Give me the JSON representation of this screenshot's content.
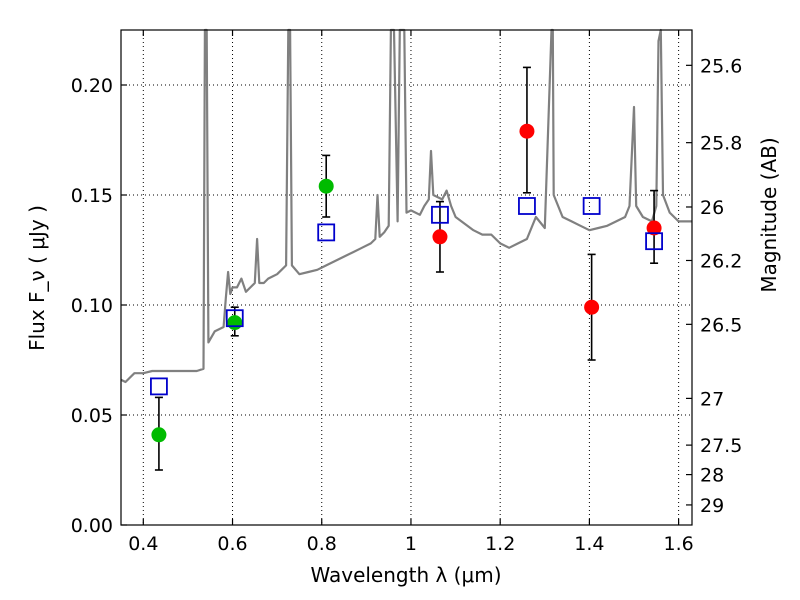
{
  "chart_data": {
    "type": "scatter",
    "xlabel": "Wavelength  λ (μm)",
    "ylabel": "Flux  F_ν  ( μJy )",
    "y2label": "Magnitude (AB)",
    "xlim": [
      0.35,
      1.63
    ],
    "ylim": [
      0,
      0.225
    ],
    "grid": true,
    "x_ticks": [
      {
        "value": 0.4,
        "label": "0.4"
      },
      {
        "value": 0.6,
        "label": "0.6"
      },
      {
        "value": 0.8,
        "label": "0.8"
      },
      {
        "value": 1.0,
        "label": "1"
      },
      {
        "value": 1.2,
        "label": "1.2"
      },
      {
        "value": 1.4,
        "label": "1.4"
      },
      {
        "value": 1.6,
        "label": "1.6"
      }
    ],
    "y_ticks": [
      {
        "value": 0.0,
        "label": "0.00"
      },
      {
        "value": 0.05,
        "label": "0.05"
      },
      {
        "value": 0.1,
        "label": "0.10"
      },
      {
        "value": 0.15,
        "label": "0.15"
      },
      {
        "value": 0.2,
        "label": "0.20"
      }
    ],
    "y2_ticks": [
      {
        "value": 25.6,
        "label": "25.6"
      },
      {
        "value": 25.8,
        "label": "25.8"
      },
      {
        "value": 26.0,
        "label": "26"
      },
      {
        "value": 26.2,
        "label": "26.2"
      },
      {
        "value": 26.5,
        "label": "26.5"
      },
      {
        "value": 27.0,
        "label": "27"
      },
      {
        "value": 27.5,
        "label": "27.5"
      },
      {
        "value": 28.0,
        "label": "28"
      },
      {
        "value": 29.0,
        "label": "29"
      }
    ],
    "series": [
      {
        "marker": "line",
        "color": "#808080",
        "points": [
          [
            0.35,
            0.066
          ],
          [
            0.36,
            0.065
          ],
          [
            0.37,
            0.067
          ],
          [
            0.38,
            0.069
          ],
          [
            0.4,
            0.069
          ],
          [
            0.42,
            0.07
          ],
          [
            0.45,
            0.07
          ],
          [
            0.48,
            0.07
          ],
          [
            0.5,
            0.07
          ],
          [
            0.52,
            0.07
          ],
          [
            0.535,
            0.071
          ],
          [
            0.538,
            0.225
          ],
          [
            0.542,
            0.225
          ],
          [
            0.546,
            0.083
          ],
          [
            0.56,
            0.088
          ],
          [
            0.58,
            0.09
          ],
          [
            0.585,
            0.103
          ],
          [
            0.59,
            0.115
          ],
          [
            0.595,
            0.105
          ],
          [
            0.6,
            0.108
          ],
          [
            0.61,
            0.108
          ],
          [
            0.62,
            0.112
          ],
          [
            0.63,
            0.106
          ],
          [
            0.64,
            0.108
          ],
          [
            0.65,
            0.11
          ],
          [
            0.655,
            0.13
          ],
          [
            0.66,
            0.11
          ],
          [
            0.67,
            0.11
          ],
          [
            0.68,
            0.112
          ],
          [
            0.69,
            0.113
          ],
          [
            0.7,
            0.114
          ],
          [
            0.71,
            0.116
          ],
          [
            0.72,
            0.118
          ],
          [
            0.725,
            0.225
          ],
          [
            0.729,
            0.225
          ],
          [
            0.733,
            0.118
          ],
          [
            0.75,
            0.114
          ],
          [
            0.77,
            0.115
          ],
          [
            0.79,
            0.116
          ],
          [
            0.81,
            0.118
          ],
          [
            0.83,
            0.12
          ],
          [
            0.85,
            0.122
          ],
          [
            0.87,
            0.124
          ],
          [
            0.89,
            0.126
          ],
          [
            0.91,
            0.128
          ],
          [
            0.92,
            0.13
          ],
          [
            0.925,
            0.15
          ],
          [
            0.93,
            0.131
          ],
          [
            0.94,
            0.133
          ],
          [
            0.95,
            0.136
          ],
          [
            0.955,
            0.225
          ],
          [
            0.962,
            0.225
          ],
          [
            0.97,
            0.138
          ],
          [
            0.975,
            0.225
          ],
          [
            0.985,
            0.225
          ],
          [
            0.99,
            0.142
          ],
          [
            1.0,
            0.143
          ],
          [
            1.02,
            0.141
          ],
          [
            1.03,
            0.145
          ],
          [
            1.04,
            0.148
          ],
          [
            1.045,
            0.17
          ],
          [
            1.05,
            0.15
          ],
          [
            1.07,
            0.148
          ],
          [
            1.08,
            0.152
          ],
          [
            1.09,
            0.145
          ],
          [
            1.1,
            0.14
          ],
          [
            1.12,
            0.137
          ],
          [
            1.14,
            0.134
          ],
          [
            1.16,
            0.132
          ],
          [
            1.18,
            0.132
          ],
          [
            1.2,
            0.128
          ],
          [
            1.22,
            0.126
          ],
          [
            1.24,
            0.128
          ],
          [
            1.26,
            0.13
          ],
          [
            1.28,
            0.14
          ],
          [
            1.3,
            0.135
          ],
          [
            1.315,
            0.225
          ],
          [
            1.318,
            0.225
          ],
          [
            1.32,
            0.15
          ],
          [
            1.34,
            0.14
          ],
          [
            1.36,
            0.138
          ],
          [
            1.38,
            0.136
          ],
          [
            1.4,
            0.134
          ],
          [
            1.42,
            0.135
          ],
          [
            1.44,
            0.136
          ],
          [
            1.46,
            0.138
          ],
          [
            1.48,
            0.14
          ],
          [
            1.49,
            0.145
          ],
          [
            1.5,
            0.19
          ],
          [
            1.505,
            0.145
          ],
          [
            1.52,
            0.14
          ],
          [
            1.54,
            0.138
          ],
          [
            1.55,
            0.145
          ],
          [
            1.555,
            0.22
          ],
          [
            1.56,
            0.225
          ],
          [
            1.565,
            0.15
          ],
          [
            1.58,
            0.142
          ],
          [
            1.6,
            0.138
          ],
          [
            1.63,
            0.138
          ]
        ]
      },
      {
        "marker": "circle",
        "color": "#00bb00",
        "points": [
          {
            "x": 0.435,
            "y": 0.041,
            "yerr_low": 0.025,
            "yerr_high": 0.058
          },
          {
            "x": 0.605,
            "y": 0.092,
            "yerr_low": 0.086,
            "yerr_high": 0.099
          },
          {
            "x": 0.81,
            "y": 0.154,
            "yerr_low": 0.14,
            "yerr_high": 0.168
          }
        ]
      },
      {
        "marker": "circle",
        "color": "#ff0000",
        "points": [
          {
            "x": 1.065,
            "y": 0.131,
            "yerr_low": 0.115,
            "yerr_high": 0.147
          },
          {
            "x": 1.26,
            "y": 0.179,
            "yerr_low": 0.151,
            "yerr_high": 0.208
          },
          {
            "x": 1.405,
            "y": 0.099,
            "yerr_low": 0.075,
            "yerr_high": 0.123
          },
          {
            "x": 1.545,
            "y": 0.135,
            "yerr_low": 0.119,
            "yerr_high": 0.152
          }
        ]
      },
      {
        "marker": "open-square",
        "color": "#0000cc",
        "points": [
          {
            "x": 0.435,
            "y": 0.063
          },
          {
            "x": 0.605,
            "y": 0.094
          },
          {
            "x": 0.81,
            "y": 0.133
          },
          {
            "x": 1.065,
            "y": 0.141
          },
          {
            "x": 1.26,
            "y": 0.145
          },
          {
            "x": 1.405,
            "y": 0.145
          },
          {
            "x": 1.545,
            "y": 0.129
          }
        ]
      }
    ]
  }
}
